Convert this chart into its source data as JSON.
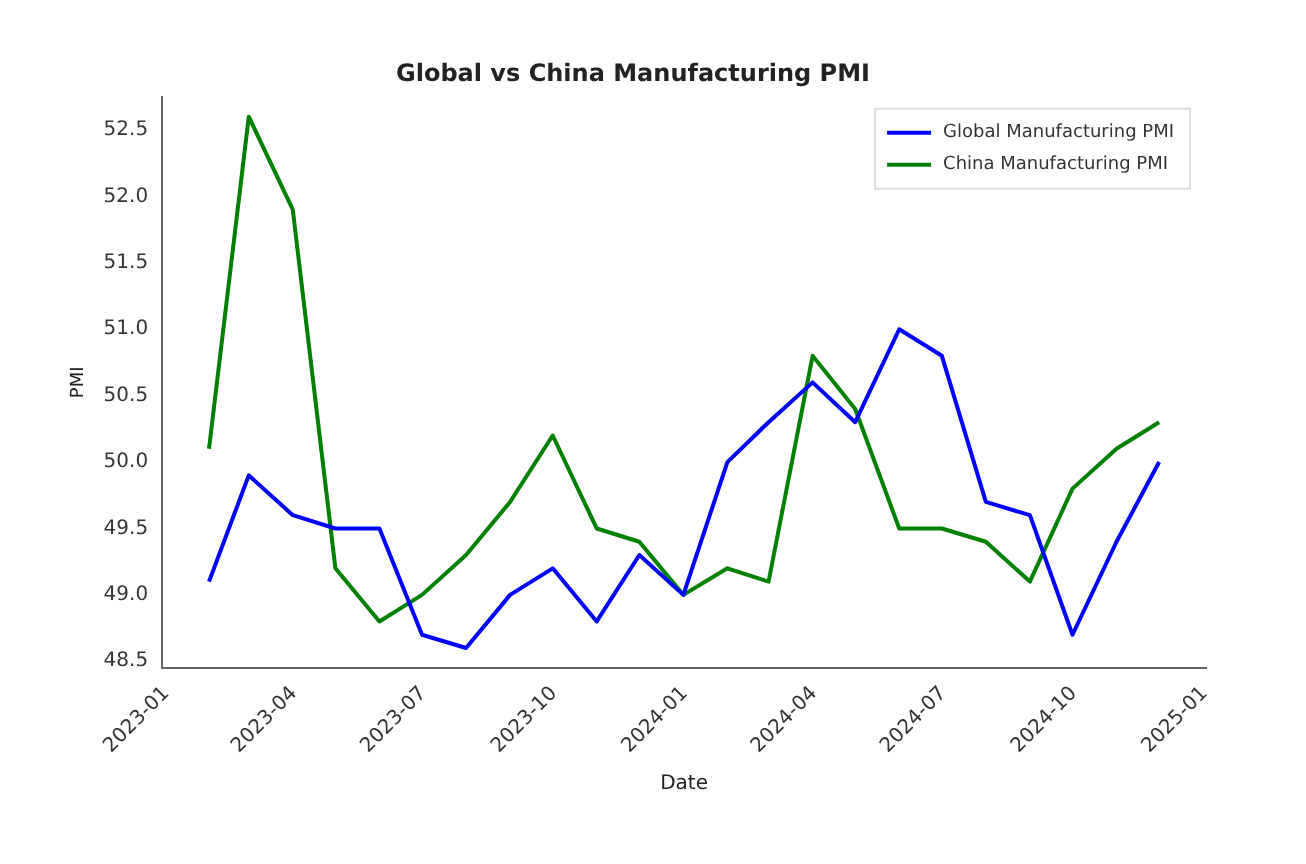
{
  "chart_data": {
    "type": "line",
    "title": "Global vs China Manufacturing PMI",
    "xlabel": "Date",
    "ylabel": "PMI",
    "x": [
      "2023-01-31",
      "2023-02-28",
      "2023-03-31",
      "2023-04-30",
      "2023-05-31",
      "2023-06-30",
      "2023-07-31",
      "2023-08-31",
      "2023-09-30",
      "2023-10-31",
      "2023-11-30",
      "2023-12-31",
      "2024-01-31",
      "2024-02-29",
      "2024-03-31",
      "2024-04-30",
      "2024-05-31",
      "2024-06-30",
      "2024-07-31",
      "2024-08-31",
      "2024-09-30",
      "2024-10-31",
      "2024-11-30"
    ],
    "series": [
      {
        "name": "Global Manufacturing PMI",
        "color": "#0000ff",
        "values": [
          49.1,
          49.9,
          49.6,
          49.5,
          49.5,
          48.7,
          48.6,
          49.0,
          49.2,
          48.8,
          49.3,
          49.0,
          50.0,
          50.3,
          50.6,
          50.3,
          51.0,
          50.8,
          49.7,
          49.6,
          48.7,
          49.4,
          50.0
        ]
      },
      {
        "name": "China Manufacturing PMI",
        "color": "#008000",
        "values": [
          50.1,
          52.6,
          51.9,
          49.2,
          48.8,
          49.0,
          49.3,
          49.7,
          50.2,
          49.5,
          49.4,
          49.0,
          49.2,
          49.1,
          50.8,
          50.4,
          49.5,
          49.5,
          49.4,
          49.1,
          49.8,
          50.1,
          50.3
        ]
      }
    ],
    "xlim": [
      "2022-12-29",
      "2025-01-02"
    ],
    "xticks": [
      "2023-01",
      "2023-04",
      "2023-07",
      "2023-10",
      "2024-01",
      "2024-04",
      "2024-07",
      "2024-10",
      "2025-01"
    ],
    "ylim": [
      48.45,
      52.75
    ],
    "yticks": [
      48.5,
      {
        "value": 49,
        "label": "49.0"
      },
      49.5,
      {
        "value": 50,
        "label": "50.0"
      },
      50.5,
      {
        "value": 51,
        "label": "51.0"
      },
      51.5,
      {
        "value": 52,
        "label": "52.0"
      },
      52.5
    ],
    "grid": false,
    "legend": "top right",
    "marker": "none",
    "line_style": "solid"
  }
}
